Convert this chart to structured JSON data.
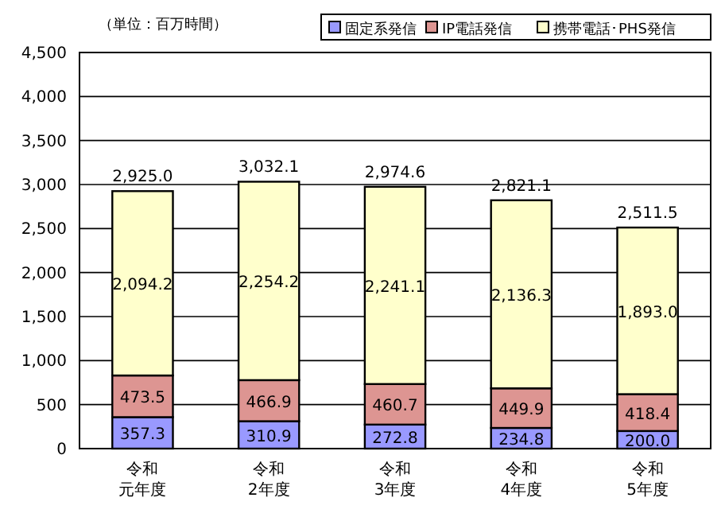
{
  "chart_data": {
    "type": "bar",
    "stacked": true,
    "title": "（単位：百万時間）",
    "categories": [
      "令和元年度",
      "令和2年度",
      "令和3年度",
      "令和4年度",
      "令和5年度"
    ],
    "series": [
      {
        "name": "固定系発信",
        "color": "#9999ff",
        "values": [
          357.3,
          310.9,
          272.8,
          234.8,
          200.0
        ],
        "value_labels": [
          "357.3",
          "310.9",
          "272.8",
          "234.8",
          "200.0"
        ]
      },
      {
        "name": "IP電話発信",
        "color": "#dd9592",
        "values": [
          473.5,
          466.9,
          460.7,
          449.9,
          418.4
        ],
        "value_labels": [
          "473.5",
          "466.9",
          "460.7",
          "449.9",
          "418.4"
        ]
      },
      {
        "name": "携帯電話･PHS発信",
        "color": "#ffffcc",
        "values": [
          2094.2,
          2254.2,
          2241.1,
          2136.3,
          1893.0
        ],
        "value_labels": [
          "2,094.2",
          "2,254.2",
          "2,241.1",
          "2,136.3",
          "1,893.0"
        ]
      }
    ],
    "totals": [
      "2,925.0",
      "3,032.1",
      "2,974.6",
      "2,821.1",
      "2,511.5"
    ],
    "ylim": [
      0,
      4500
    ],
    "yticks": [
      0,
      500,
      {
        "value": 1000,
        "label": "1,000"
      },
      {
        "value": 1500,
        "label": "1,500"
      },
      {
        "value": 2000,
        "label": "2,000"
      },
      {
        "value": 2500,
        "label": "2,500"
      },
      {
        "value": 3000,
        "label": "3,000"
      },
      {
        "value": 3500,
        "label": "3,500"
      },
      {
        "value": 4000,
        "label": "4,000"
      },
      {
        "value": 4500,
        "label": "4,500"
      }
    ],
    "grid": "y",
    "legend": "top right"
  }
}
